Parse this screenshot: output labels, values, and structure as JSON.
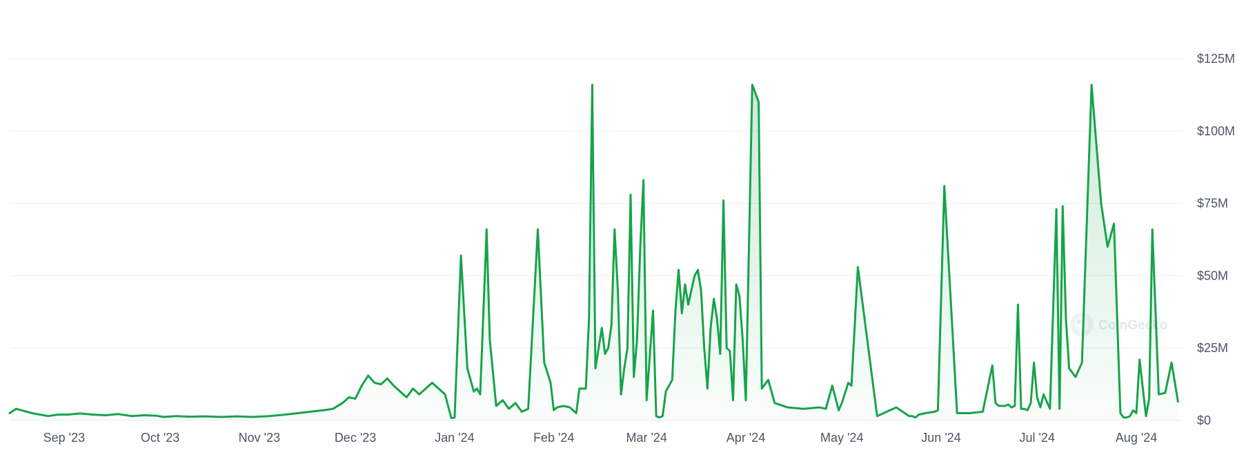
{
  "chart_data": {
    "type": "area",
    "x_start": "2023-08-15",
    "x_end": "2024-08-15",
    "ylim": [
      0,
      125000000
    ],
    "y_ticks": [
      {
        "value": 0,
        "label": "$0"
      },
      {
        "value": 25000000,
        "label": "$25M"
      },
      {
        "value": 50000000,
        "label": "$50M"
      },
      {
        "value": 75000000,
        "label": "$75M"
      },
      {
        "value": 100000000,
        "label": "$100M"
      },
      {
        "value": 125000000,
        "label": "$125M"
      }
    ],
    "x_ticks": [
      {
        "date": "2023-09-01",
        "label": "Sep '23"
      },
      {
        "date": "2023-10-01",
        "label": "Oct '23"
      },
      {
        "date": "2023-11-01",
        "label": "Nov '23"
      },
      {
        "date": "2023-12-01",
        "label": "Dec '23"
      },
      {
        "date": "2024-01-01",
        "label": "Jan '24"
      },
      {
        "date": "2024-02-01",
        "label": "Feb '24"
      },
      {
        "date": "2024-03-01",
        "label": "Mar '24"
      },
      {
        "date": "2024-04-01",
        "label": "Apr '24"
      },
      {
        "date": "2024-05-01",
        "label": "May '24"
      },
      {
        "date": "2024-06-01",
        "label": "Jun '24"
      },
      {
        "date": "2024-07-01",
        "label": "Jul '24"
      },
      {
        "date": "2024-08-01",
        "label": "Aug '24"
      }
    ],
    "grid": true,
    "legend": "none",
    "line_color": "#16a34a",
    "fill_color": "#16a34a",
    "series": [
      {
        "x": [
          "2023-08-15",
          "2023-08-17",
          "2023-08-22",
          "2023-08-27",
          "2023-08-30",
          "2023-09-02",
          "2023-09-06",
          "2023-09-10",
          "2023-09-14",
          "2023-09-18",
          "2023-09-22",
          "2023-09-26",
          "2023-09-30",
          "2023-10-02",
          "2023-10-06",
          "2023-10-10",
          "2023-10-15",
          "2023-10-20",
          "2023-10-25",
          "2023-10-30",
          "2023-11-04",
          "2023-11-09",
          "2023-11-13",
          "2023-11-17",
          "2023-11-21",
          "2023-11-24",
          "2023-11-27",
          "2023-11-29",
          "2023-12-01",
          "2023-12-03",
          "2023-12-05",
          "2023-12-07",
          "2023-12-09",
          "2023-12-11",
          "2023-12-13",
          "2023-12-15",
          "2023-12-17",
          "2023-12-19",
          "2023-12-21",
          "2023-12-23",
          "2023-12-25",
          "2023-12-27",
          "2023-12-29",
          "2023-12-31",
          "2024-01-01",
          "2024-01-03",
          "2024-01-05",
          "2024-01-07",
          "2024-01-08",
          "2024-01-09",
          "2024-01-11",
          "2024-01-12",
          "2024-01-14",
          "2024-01-16",
          "2024-01-18",
          "2024-01-20",
          "2024-01-22",
          "2024-01-24",
          "2024-01-27",
          "2024-01-29",
          "2024-01-31",
          "2024-02-01",
          "2024-02-02",
          "2024-02-04",
          "2024-02-06",
          "2024-02-08",
          "2024-02-09",
          "2024-02-11",
          "2024-02-12",
          "2024-02-13",
          "2024-02-14",
          "2024-02-16",
          "2024-02-17",
          "2024-02-18",
          "2024-02-19",
          "2024-02-20",
          "2024-02-21",
          "2024-02-22",
          "2024-02-23",
          "2024-02-24",
          "2024-02-25",
          "2024-02-26",
          "2024-02-27",
          "2024-02-28",
          "2024-02-29",
          "2024-03-01",
          "2024-03-03",
          "2024-03-04",
          "2024-03-05",
          "2024-03-06",
          "2024-03-07",
          "2024-03-08",
          "2024-03-09",
          "2024-03-10",
          "2024-03-11",
          "2024-03-12",
          "2024-03-13",
          "2024-03-14",
          "2024-03-16",
          "2024-03-17",
          "2024-03-18",
          "2024-03-19",
          "2024-03-20",
          "2024-03-21",
          "2024-03-22",
          "2024-03-23",
          "2024-03-24",
          "2024-03-25",
          "2024-03-26",
          "2024-03-27",
          "2024-03-28",
          "2024-03-29",
          "2024-03-30",
          "2024-03-31",
          "2024-04-01",
          "2024-04-03",
          "2024-04-05",
          "2024-04-06",
          "2024-04-08",
          "2024-04-10",
          "2024-04-14",
          "2024-04-19",
          "2024-04-24",
          "2024-04-26",
          "2024-04-28",
          "2024-04-30",
          "2024-05-01",
          "2024-05-03",
          "2024-05-04",
          "2024-05-06",
          "2024-05-12",
          "2024-05-18",
          "2024-05-22",
          "2024-05-23",
          "2024-05-24",
          "2024-05-25",
          "2024-05-27",
          "2024-05-30",
          "2024-05-31",
          "2024-06-02",
          "2024-06-06",
          "2024-06-10",
          "2024-06-14",
          "2024-06-17",
          "2024-06-18",
          "2024-06-19",
          "2024-06-20",
          "2024-06-21",
          "2024-06-22",
          "2024-06-23",
          "2024-06-24",
          "2024-06-25",
          "2024-06-26",
          "2024-06-27",
          "2024-06-28",
          "2024-06-29",
          "2024-06-30",
          "2024-07-01",
          "2024-07-02",
          "2024-07-03",
          "2024-07-05",
          "2024-07-07",
          "2024-07-08",
          "2024-07-09",
          "2024-07-10",
          "2024-07-11",
          "2024-07-13",
          "2024-07-15",
          "2024-07-18",
          "2024-07-21",
          "2024-07-23",
          "2024-07-25",
          "2024-07-27",
          "2024-07-28",
          "2024-07-29",
          "2024-07-30",
          "2024-07-31",
          "2024-08-01",
          "2024-08-02",
          "2024-08-04",
          "2024-08-05",
          "2024-08-06",
          "2024-08-08",
          "2024-08-10",
          "2024-08-12",
          "2024-08-14"
        ],
        "y": [
          2.5,
          4.0,
          2.5,
          1.5,
          2.0,
          2.0,
          2.4,
          2.0,
          1.8,
          2.2,
          1.5,
          1.8,
          1.6,
          1.2,
          1.5,
          1.3,
          1.4,
          1.2,
          1.4,
          1.2,
          1.5,
          2.0,
          2.5,
          3.0,
          3.5,
          4.0,
          6.0,
          8.0,
          7.5,
          12.0,
          15.5,
          13.0,
          12.5,
          14.5,
          12.0,
          10.0,
          8.0,
          11.0,
          9.0,
          11.0,
          13.0,
          11.0,
          9.0,
          0.8,
          1.0,
          57.0,
          18.0,
          10.0,
          11.0,
          9.0,
          66.0,
          28.0,
          5.0,
          7.0,
          4.0,
          6.0,
          3.0,
          4.0,
          66.0,
          20.0,
          13.0,
          3.5,
          4.5,
          5.0,
          4.5,
          2.5,
          11.0,
          11.0,
          35.0,
          116.0,
          18.0,
          32.0,
          23.0,
          25.0,
          33.0,
          66.0,
          45.0,
          9.0,
          18.0,
          25.0,
          78.0,
          15.0,
          28.0,
          60.0,
          83.0,
          7.0,
          38.0,
          1.5,
          1.0,
          1.5,
          10.0,
          12.0,
          14.0,
          38.0,
          52.0,
          37.0,
          47.0,
          40.0,
          50.0,
          52.0,
          45.0,
          25.0,
          11.0,
          32.0,
          42.0,
          35.0,
          23.0,
          76.0,
          25.0,
          24.0,
          7.0,
          47.0,
          43.0,
          28.0,
          7.0,
          116.0,
          110.0,
          11.0,
          14.0,
          6.0,
          4.5,
          4.0,
          4.5,
          4.0,
          12.0,
          3.5,
          6.0,
          13.0,
          12.0,
          53.0,
          1.5,
          4.5,
          1.5,
          1.5,
          1.0,
          2.0,
          2.5,
          3.0,
          3.5,
          81.0,
          2.5,
          2.5,
          3.0,
          19.0,
          6.0,
          5.0,
          5.0,
          5.0,
          5.5,
          4.5,
          5.0,
          40.0,
          4.0,
          4.0,
          3.5,
          6.0,
          20.0,
          8.0,
          4.5,
          9.0,
          4.0,
          73.0,
          4.0,
          74.0,
          35.0,
          18.0,
          15.0,
          20.0,
          116.0,
          75.0,
          60.0,
          68.0,
          2.5,
          1.0,
          1.0,
          1.5,
          3.5,
          2.5,
          21.0,
          1.5,
          7.5,
          66.0,
          9.0,
          9.5,
          20.0,
          6.5
        ]
      }
    ]
  },
  "watermark": {
    "text": "CoinGecko"
  }
}
